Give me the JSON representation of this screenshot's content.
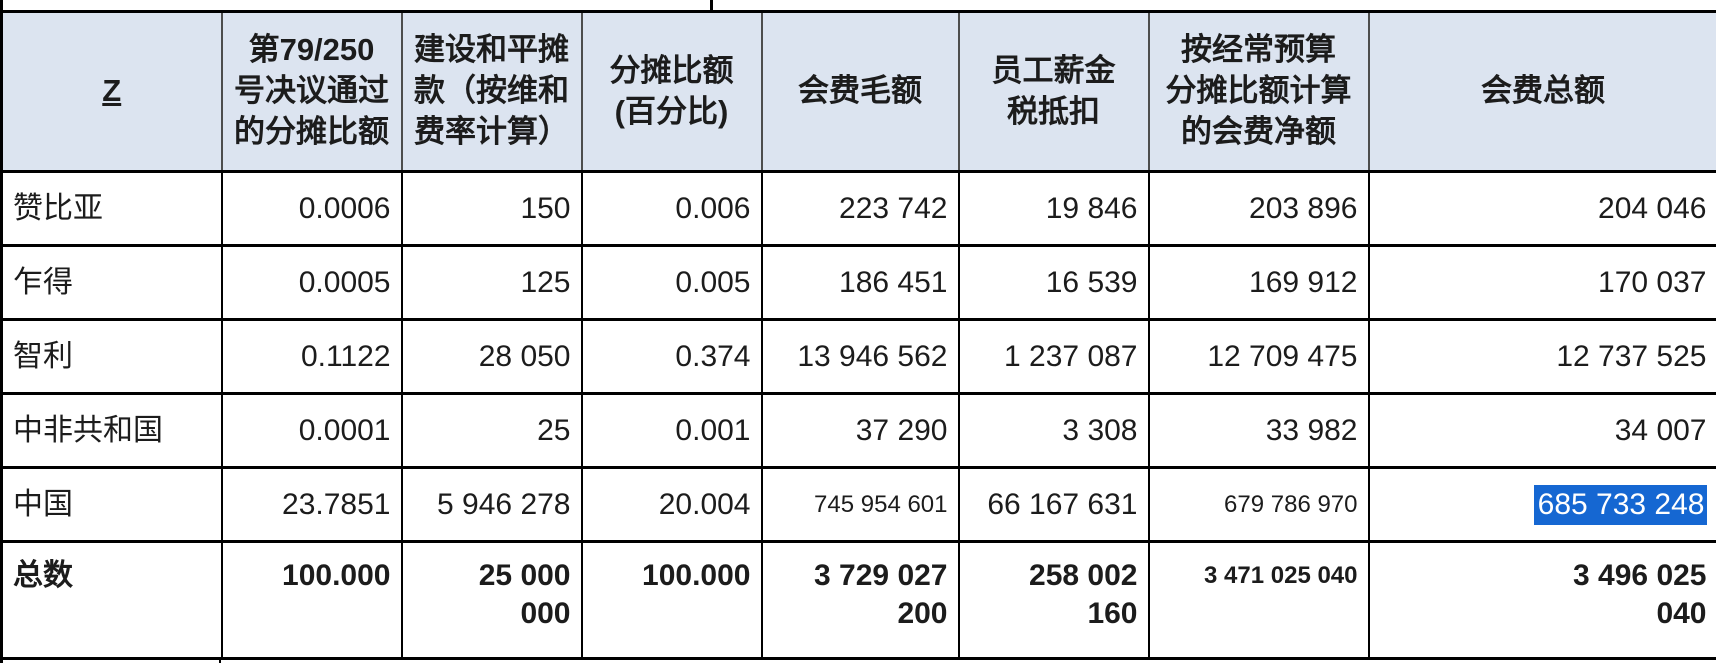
{
  "colors": {
    "header_bg": "#dce4f0",
    "header_divider": "#4d4d4d",
    "grid_border": "#000000",
    "selection_bg": "#1567d2",
    "selection_text": "#ffffff"
  },
  "table": {
    "header": {
      "col1": "Z",
      "col2": "第79/250\n号决议通过\n的分摊比额",
      "col3": "建设和平摊\n款（按维和\n费率计算）",
      "col4": "分摊比额\n(百分比)",
      "col5": "会费毛额",
      "col6": "员工薪金\n税抵扣",
      "col7": "按经常预算\n分摊比额计算\n的会费净额",
      "col8": "会费总额"
    },
    "rows": [
      {
        "name": "赞比亚",
        "c1": "0.0006",
        "c2": "150",
        "c3": "0.006",
        "c4": "223 742",
        "c5": "19 846",
        "c6": "203 896",
        "c7": "204 046"
      },
      {
        "name": "乍得",
        "c1": "0.0005",
        "c2": "125",
        "c3": "0.005",
        "c4": "186 451",
        "c5": "16 539",
        "c6": "169 912",
        "c7": "170 037"
      },
      {
        "name": "智利",
        "c1": "0.1122",
        "c2": "28 050",
        "c3": "0.374",
        "c4": "13 946 562",
        "c5": "1 237 087",
        "c6": "12 709 475",
        "c7": "12 737 525"
      },
      {
        "name": "中非共和国",
        "c1": "0.0001",
        "c2": "25",
        "c3": "0.001",
        "c4": "37 290",
        "c5": "3 308",
        "c6": "33 982",
        "c7": "34 007"
      },
      {
        "name": "中国",
        "c1": "23.7851",
        "c2": "5 946 278",
        "c3": "20.004",
        "c4": "745 954 601",
        "c5": "66 167 631",
        "c6": "679 786 970",
        "c7": "685 733 248"
      }
    ],
    "total": {
      "name": "总数",
      "c1": "100.000",
      "c2": "25 000\n000",
      "c3": "100.000",
      "c4": "3 729 027\n200",
      "c5": "258 002\n160",
      "c6": "3 471 025 040",
      "c7": "3 496 025\n040"
    },
    "selection_value": "685 733 248"
  }
}
